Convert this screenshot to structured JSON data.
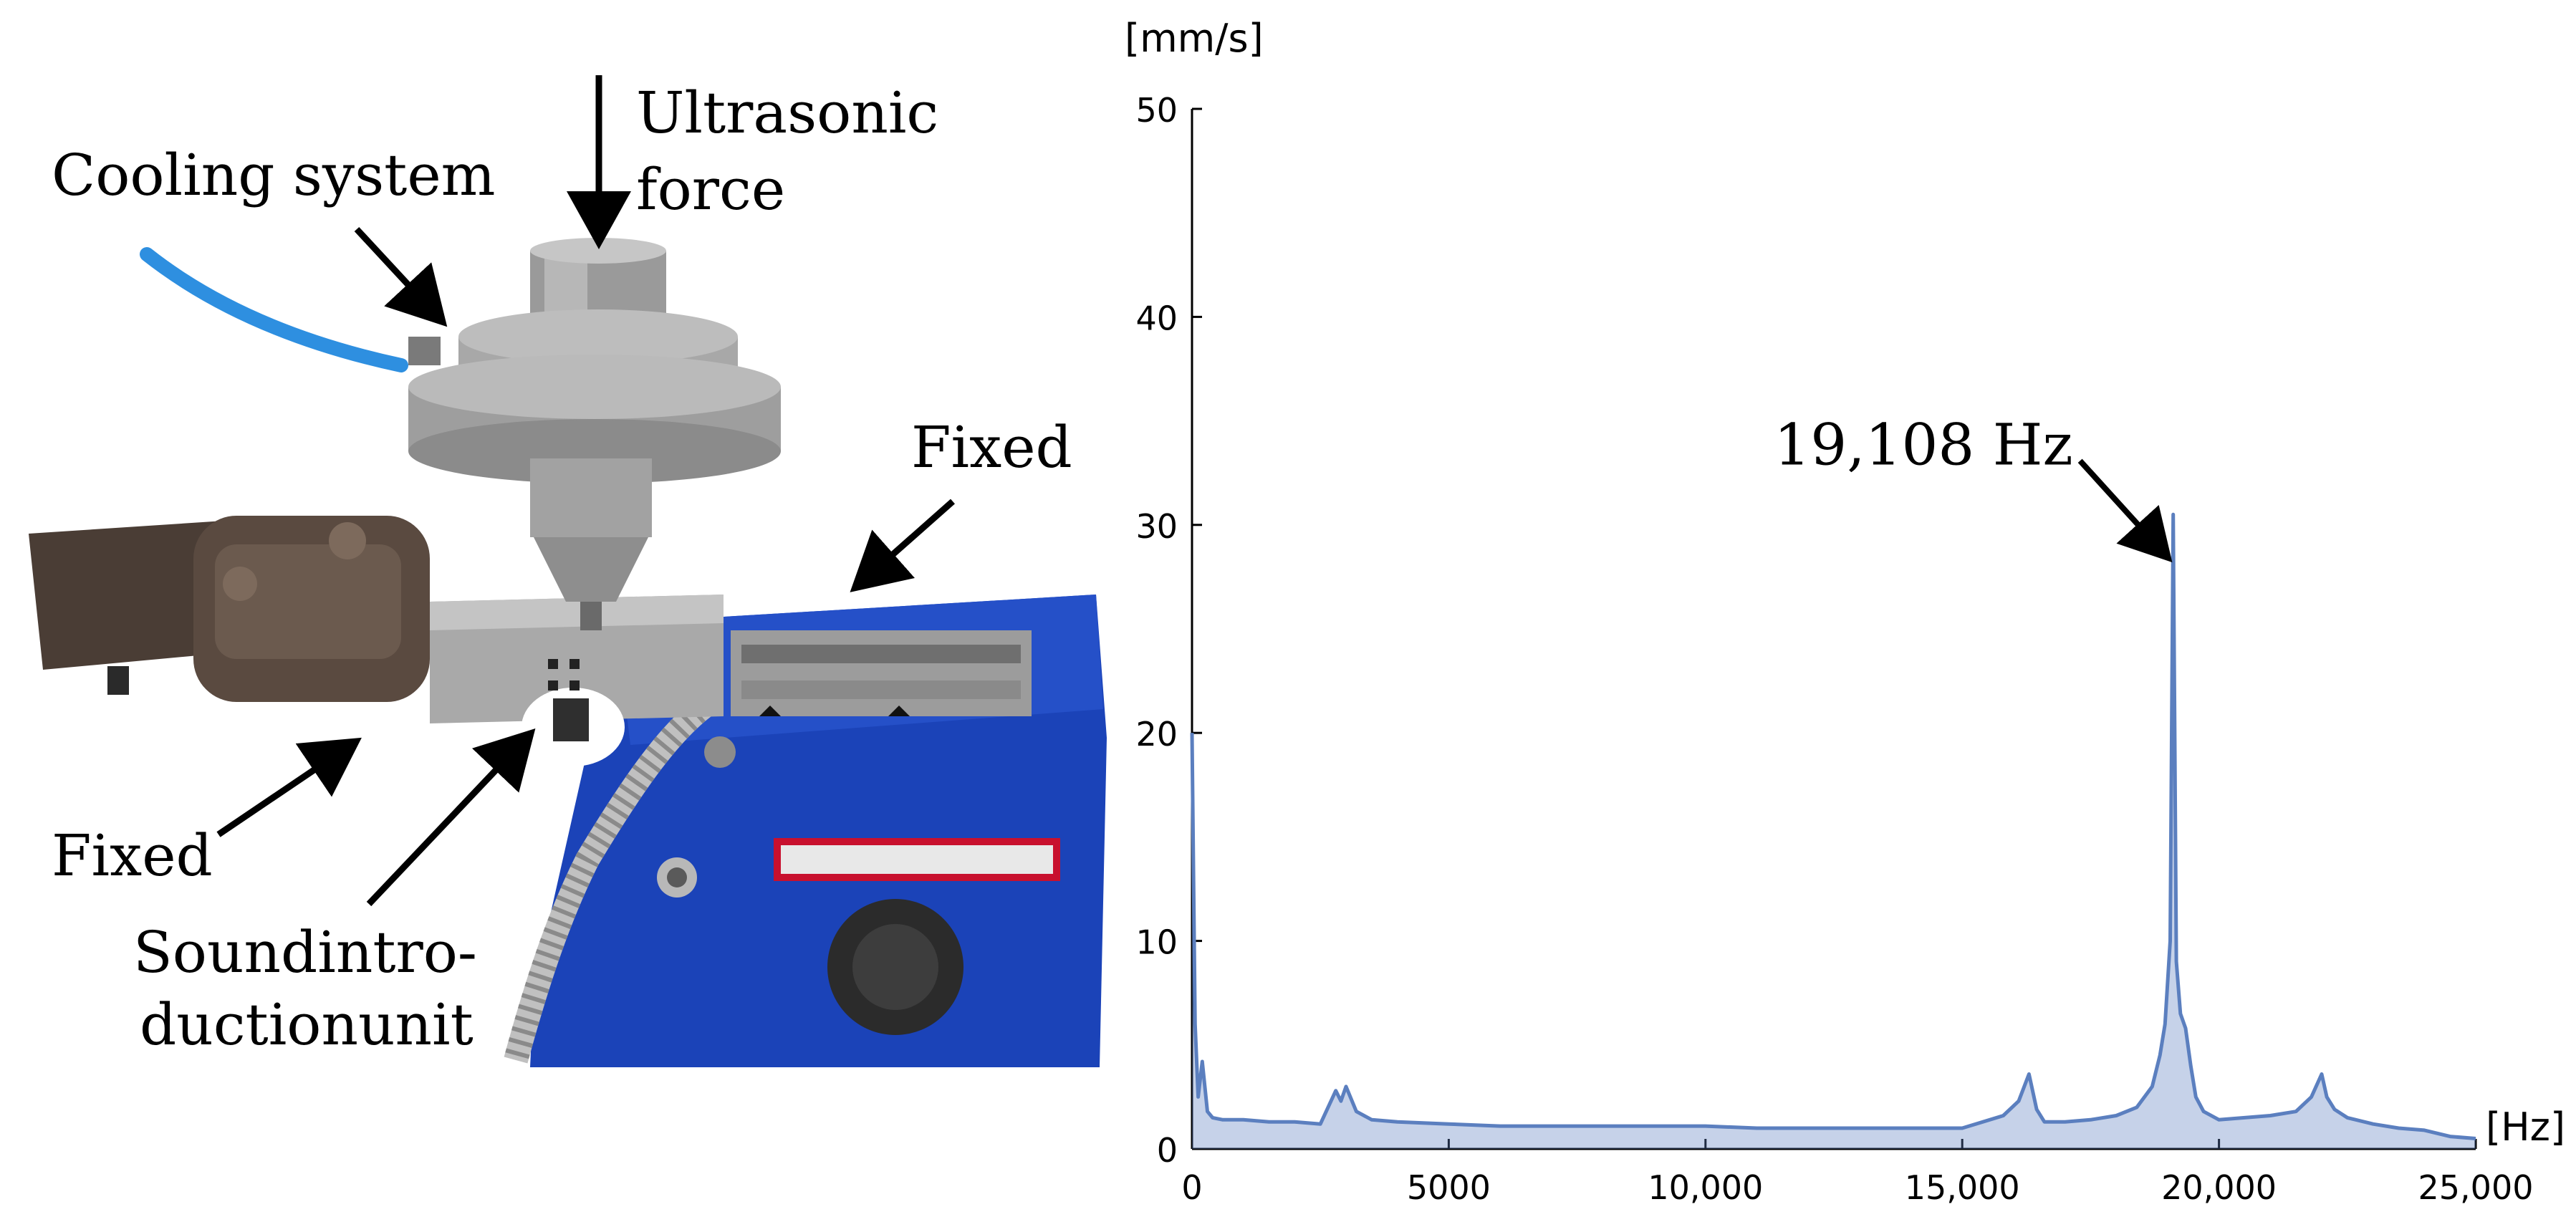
{
  "photo": {
    "labels": {
      "ultrasonic_line1": "Ultrasonic",
      "ultrasonic_line2": "force",
      "cooling": "Cooling system",
      "fixed_right": "Fixed",
      "fixed_left": "Fixed",
      "sound_line1": "Soundintro-",
      "sound_line2": "ductionunit"
    },
    "colors": {
      "hose": "#2e8fe0",
      "vise_blue": "#1b43b8",
      "metal": "#a9a9a9",
      "clamp": "#5a4a40"
    }
  },
  "chart_data": {
    "type": "line",
    "y_unit_label": "[mm/s]",
    "x_unit_label": "[Hz]",
    "xlim": [
      0,
      25000
    ],
    "ylim": [
      0,
      50
    ],
    "x_ticks": [
      {
        "value": 0,
        "label": "0"
      },
      {
        "value": 5000,
        "label": "5000"
      },
      {
        "value": 10000,
        "label": "10,000"
      },
      {
        "value": 15000,
        "label": "15,000"
      },
      {
        "value": 20000,
        "label": "20,000"
      },
      {
        "value": 25000,
        "label": "25,000"
      }
    ],
    "y_ticks": [
      {
        "value": 0,
        "label": "0"
      },
      {
        "value": 10,
        "label": "10"
      },
      {
        "value": 20,
        "label": "20"
      },
      {
        "value": 30,
        "label": "30"
      },
      {
        "value": 40,
        "label": "40"
      },
      {
        "value": 50,
        "label": "50"
      }
    ],
    "annotation": {
      "text": "19,108 Hz",
      "x": 19108,
      "y": 30.5
    },
    "line_color": "#5b7fbf",
    "grid": false,
    "series": [
      {
        "x": [
          0,
          60,
          120,
          200,
          300,
          400,
          600,
          1000,
          1500,
          2000,
          2500,
          2800,
          2900,
          3000,
          3100,
          3200,
          3500,
          4000,
          5000,
          6000,
          7000,
          8000,
          9000,
          10000,
          11000,
          12000,
          13000,
          14000,
          15000,
          15800,
          16100,
          16300,
          16450,
          16600,
          17000,
          17500,
          18000,
          18400,
          18700,
          18850,
          18950,
          19050,
          19108,
          19170,
          19250,
          19350,
          19450,
          19550,
          19700,
          20000,
          20500,
          21000,
          21500,
          21800,
          22000,
          22100,
          22250,
          22500,
          23000,
          23500,
          24000,
          24500,
          25000
        ],
        "y": [
          20,
          6,
          2.5,
          4.2,
          1.8,
          1.5,
          1.4,
          1.4,
          1.3,
          1.3,
          1.2,
          2.8,
          2.3,
          3.0,
          2.4,
          1.8,
          1.4,
          1.3,
          1.2,
          1.1,
          1.1,
          1.1,
          1.1,
          1.1,
          1.0,
          1.0,
          1.0,
          1.0,
          1.0,
          1.6,
          2.3,
          3.6,
          1.9,
          1.3,
          1.3,
          1.4,
          1.6,
          2.0,
          3.0,
          4.5,
          6.0,
          10.0,
          30.5,
          9.0,
          6.5,
          5.8,
          4.0,
          2.5,
          1.8,
          1.4,
          1.5,
          1.6,
          1.8,
          2.5,
          3.6,
          2.5,
          1.9,
          1.5,
          1.2,
          1.0,
          0.9,
          0.6,
          0.5
        ]
      }
    ]
  }
}
